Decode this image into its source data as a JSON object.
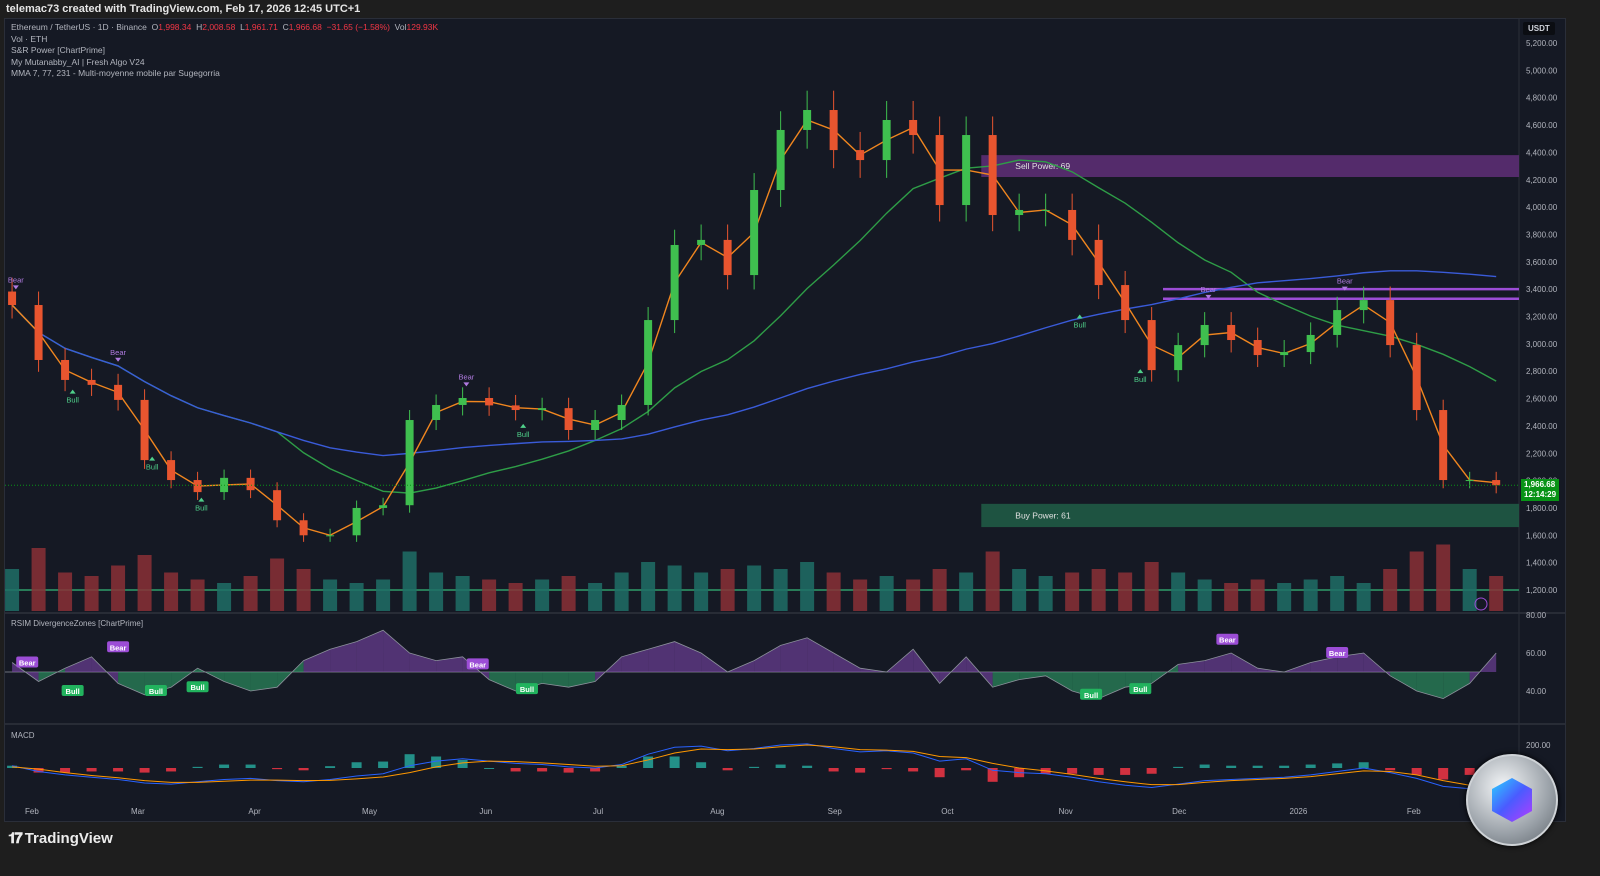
{
  "topbar": {
    "text": "telemac73 created with TradingView.com, Feb 17, 2026 12:45 UTC+1"
  },
  "legend": {
    "symbol": "Ethereum / TetherUS · 1D · Binance",
    "o_label": "O",
    "o": "1,998.34",
    "h_label": "H",
    "h": "2,008.58",
    "l_label": "L",
    "l": "1,961.71",
    "c_label": "C",
    "c": "1,966.68",
    "change": "−31.65 (−1.58%)",
    "vol_label": "Vol",
    "vol": "129.93K",
    "lines": [
      "Vol · ETH",
      "S&R Power [ChartPrime]",
      "My Mutanabby_AI | Fresh Algo V24",
      "MMA 7, 77, 231 - Multi-moyenne mobile par Sugegorria"
    ]
  },
  "axis": {
    "currency": "USDT",
    "last_price": "1,966.68",
    "countdown": "12:14:29"
  },
  "footer": {
    "brand": "TradingView"
  },
  "colors": {
    "background": "#151924",
    "up": "#3fbf4f",
    "down": "#e8552f",
    "ma7": "#f0861f",
    "ma77": "#2e9d47",
    "ma231": "#3a5bd9",
    "sell_zone": "#5b2d73",
    "buy_zone": "#1f5a45",
    "label_bear": "#9c4dd6",
    "label_bull": "#22b35e"
  },
  "chart_data": [
    {
      "type": "candlestick",
      "title": "Ethereum / TetherUS · 1D · Binance",
      "ylim": [
        1200,
        5200
      ],
      "y_ticks": [
        "1,200.00",
        "1,400.00",
        "1,600.00",
        "1,800.00",
        "2,000.00",
        "2,200.00",
        "2,400.00",
        "2,600.00",
        "2,800.00",
        "3,000.00",
        "3,200.00",
        "3,400.00",
        "3,600.00",
        "3,800.00",
        "4,000.00",
        "4,200.00",
        "4,400.00",
        "4,600.00",
        "4,800.00",
        "5,000.00",
        "5,200.00"
      ],
      "x_ticks": [
        {
          "label": "Feb",
          "date": "2025-02-01"
        },
        {
          "label": "Mar",
          "date": "2025-03-01"
        },
        {
          "label": "Apr",
          "date": "2025-04-01"
        },
        {
          "label": "May",
          "date": "2025-05-01"
        },
        {
          "label": "Jun",
          "date": "2025-06-01"
        },
        {
          "label": "Jul",
          "date": "2025-07-01"
        },
        {
          "label": "Aug",
          "date": "2025-08-01"
        },
        {
          "label": "Sep",
          "date": "2025-09-01"
        },
        {
          "label": "Oct",
          "date": "2025-10-01"
        },
        {
          "label": "Nov",
          "date": "2025-11-01"
        },
        {
          "label": "Dec",
          "date": "2025-12-01"
        },
        {
          "label": "2026",
          "date": "2026-01-01"
        },
        {
          "label": "Feb",
          "date": "2026-02-01"
        }
      ],
      "start_date": "2025-01-27",
      "interval_days": 7,
      "close": [
        3284,
        2882,
        2736,
        2700,
        2590,
        2150,
        2004,
        1916,
        2020,
        1930,
        1710,
        1600,
        1600,
        1800,
        1820,
        2443,
        2553,
        2604,
        2550,
        2516,
        2530,
        2370,
        2443,
        2553,
        3174,
        3723,
        3760,
        3503,
        4125,
        4564,
        4710,
        4417,
        4344,
        4637,
        4527,
        4015,
        4527,
        3942,
        3979,
        3979,
        3760,
        3430,
        3174,
        2808,
        2991,
        3138,
        3028,
        2918,
        2940,
        3065,
        3247,
        3320,
        2991,
        2516,
        2004,
        2004,
        1966
      ],
      "volume": [
        60,
        90,
        55,
        50,
        65,
        80,
        55,
        45,
        40,
        50,
        75,
        60,
        45,
        40,
        45,
        85,
        55,
        50,
        45,
        40,
        45,
        50,
        40,
        55,
        70,
        65,
        55,
        60,
        65,
        60,
        70,
        55,
        45,
        50,
        45,
        60,
        55,
        85,
        60,
        50,
        55,
        60,
        55,
        70,
        55,
        45,
        40,
        45,
        40,
        45,
        50,
        40,
        60,
        85,
        95,
        60,
        50
      ],
      "zones": [
        {
          "label": "Sell Power: 69",
          "from": "2025-10-10",
          "low": 4220,
          "high": 4380
        },
        {
          "label": "Buy Power: 61",
          "from": "2025-10-10",
          "low": 1660,
          "high": 1830
        }
      ],
      "levels": [
        {
          "from": "2025-11-27",
          "price": 3400
        },
        {
          "from": "2025-11-27",
          "price": 3330
        }
      ],
      "signals": [
        {
          "label": "Bear",
          "date": "2025-01-28",
          "price": 3450
        },
        {
          "label": "Bear",
          "date": "2025-02-24",
          "price": 2920
        },
        {
          "label": "Bull",
          "date": "2025-02-12",
          "price": 2570
        },
        {
          "label": "Bull",
          "date": "2025-03-05",
          "price": 2080
        },
        {
          "label": "Bull",
          "date": "2025-03-18",
          "price": 1780
        },
        {
          "label": "Bear",
          "date": "2025-05-27",
          "price": 2740
        },
        {
          "label": "Bull",
          "date": "2025-06-11",
          "price": 2320
        },
        {
          "label": "Bull",
          "date": "2025-11-05",
          "price": 3120
        },
        {
          "label": "Bull",
          "date": "2025-11-21",
          "price": 2720
        },
        {
          "label": "Bear",
          "date": "2025-12-09",
          "price": 3380
        },
        {
          "label": "Bear",
          "date": "2026-01-14",
          "price": 3440
        }
      ]
    },
    {
      "type": "area",
      "title": "RSIM DivergenceZones [ChartPrime]",
      "ylim": [
        20,
        80
      ],
      "midline": 50,
      "y_ticks": [
        "80.00",
        "60.00",
        "40.00"
      ],
      "values": [
        55,
        45,
        52,
        58,
        44,
        38,
        42,
        52,
        45,
        40,
        42,
        56,
        62,
        66,
        72,
        60,
        56,
        58,
        46,
        40,
        44,
        42,
        45,
        58,
        62,
        66,
        60,
        50,
        56,
        64,
        68,
        60,
        52,
        50,
        62,
        44,
        58,
        42,
        46,
        48,
        40,
        36,
        42,
        44,
        54,
        56,
        60,
        52,
        50,
        55,
        58,
        60,
        48,
        40,
        36,
        44,
        60
      ],
      "signals": [
        {
          "label": "Bear",
          "date": "2025-01-31",
          "value": 55
        },
        {
          "label": "Bear",
          "date": "2025-02-24",
          "value": 63
        },
        {
          "label": "Bull",
          "date": "2025-02-12",
          "value": 40
        },
        {
          "label": "Bull",
          "date": "2025-03-06",
          "value": 40
        },
        {
          "label": "Bull",
          "date": "2025-03-17",
          "value": 42
        },
        {
          "label": "Bear",
          "date": "2025-05-30",
          "value": 54
        },
        {
          "label": "Bull",
          "date": "2025-06-12",
          "value": 41
        },
        {
          "label": "Bull",
          "date": "2025-11-08",
          "value": 38
        },
        {
          "label": "Bull",
          "date": "2025-11-21",
          "value": 41
        },
        {
          "label": "Bear",
          "date": "2025-12-14",
          "value": 67
        },
        {
          "label": "Bear",
          "date": "2026-01-12",
          "value": 60
        }
      ]
    },
    {
      "type": "line",
      "title": "MACD",
      "y_ticks": [
        "200.00"
      ],
      "ylim": [
        -150,
        250
      ],
      "macd": [
        20,
        -30,
        -60,
        -80,
        -100,
        -130,
        -140,
        -120,
        -100,
        -90,
        -110,
        -120,
        -100,
        -70,
        -50,
        20,
        60,
        80,
        60,
        40,
        30,
        10,
        0,
        30,
        120,
        180,
        190,
        150,
        170,
        200,
        210,
        170,
        140,
        150,
        130,
        60,
        80,
        -20,
        -40,
        -50,
        -80,
        -120,
        -150,
        -170,
        -140,
        -110,
        -100,
        -90,
        -80,
        -60,
        -30,
        0,
        -40,
        -90,
        -160,
        -180,
        -170
      ],
      "signal": [
        10,
        -10,
        -40,
        -65,
        -85,
        -110,
        -125,
        -125,
        -115,
        -105,
        -105,
        -110,
        -108,
        -95,
        -78,
        -40,
        10,
        45,
        60,
        55,
        45,
        30,
        15,
        20,
        70,
        130,
        165,
        160,
        165,
        185,
        200,
        185,
        160,
        155,
        145,
        100,
        90,
        40,
        0,
        -25,
        -55,
        -90,
        -120,
        -145,
        -145,
        -125,
        -110,
        -100,
        -90,
        -75,
        -50,
        -25,
        -30,
        -60,
        -110,
        -150,
        -160
      ]
    }
  ]
}
